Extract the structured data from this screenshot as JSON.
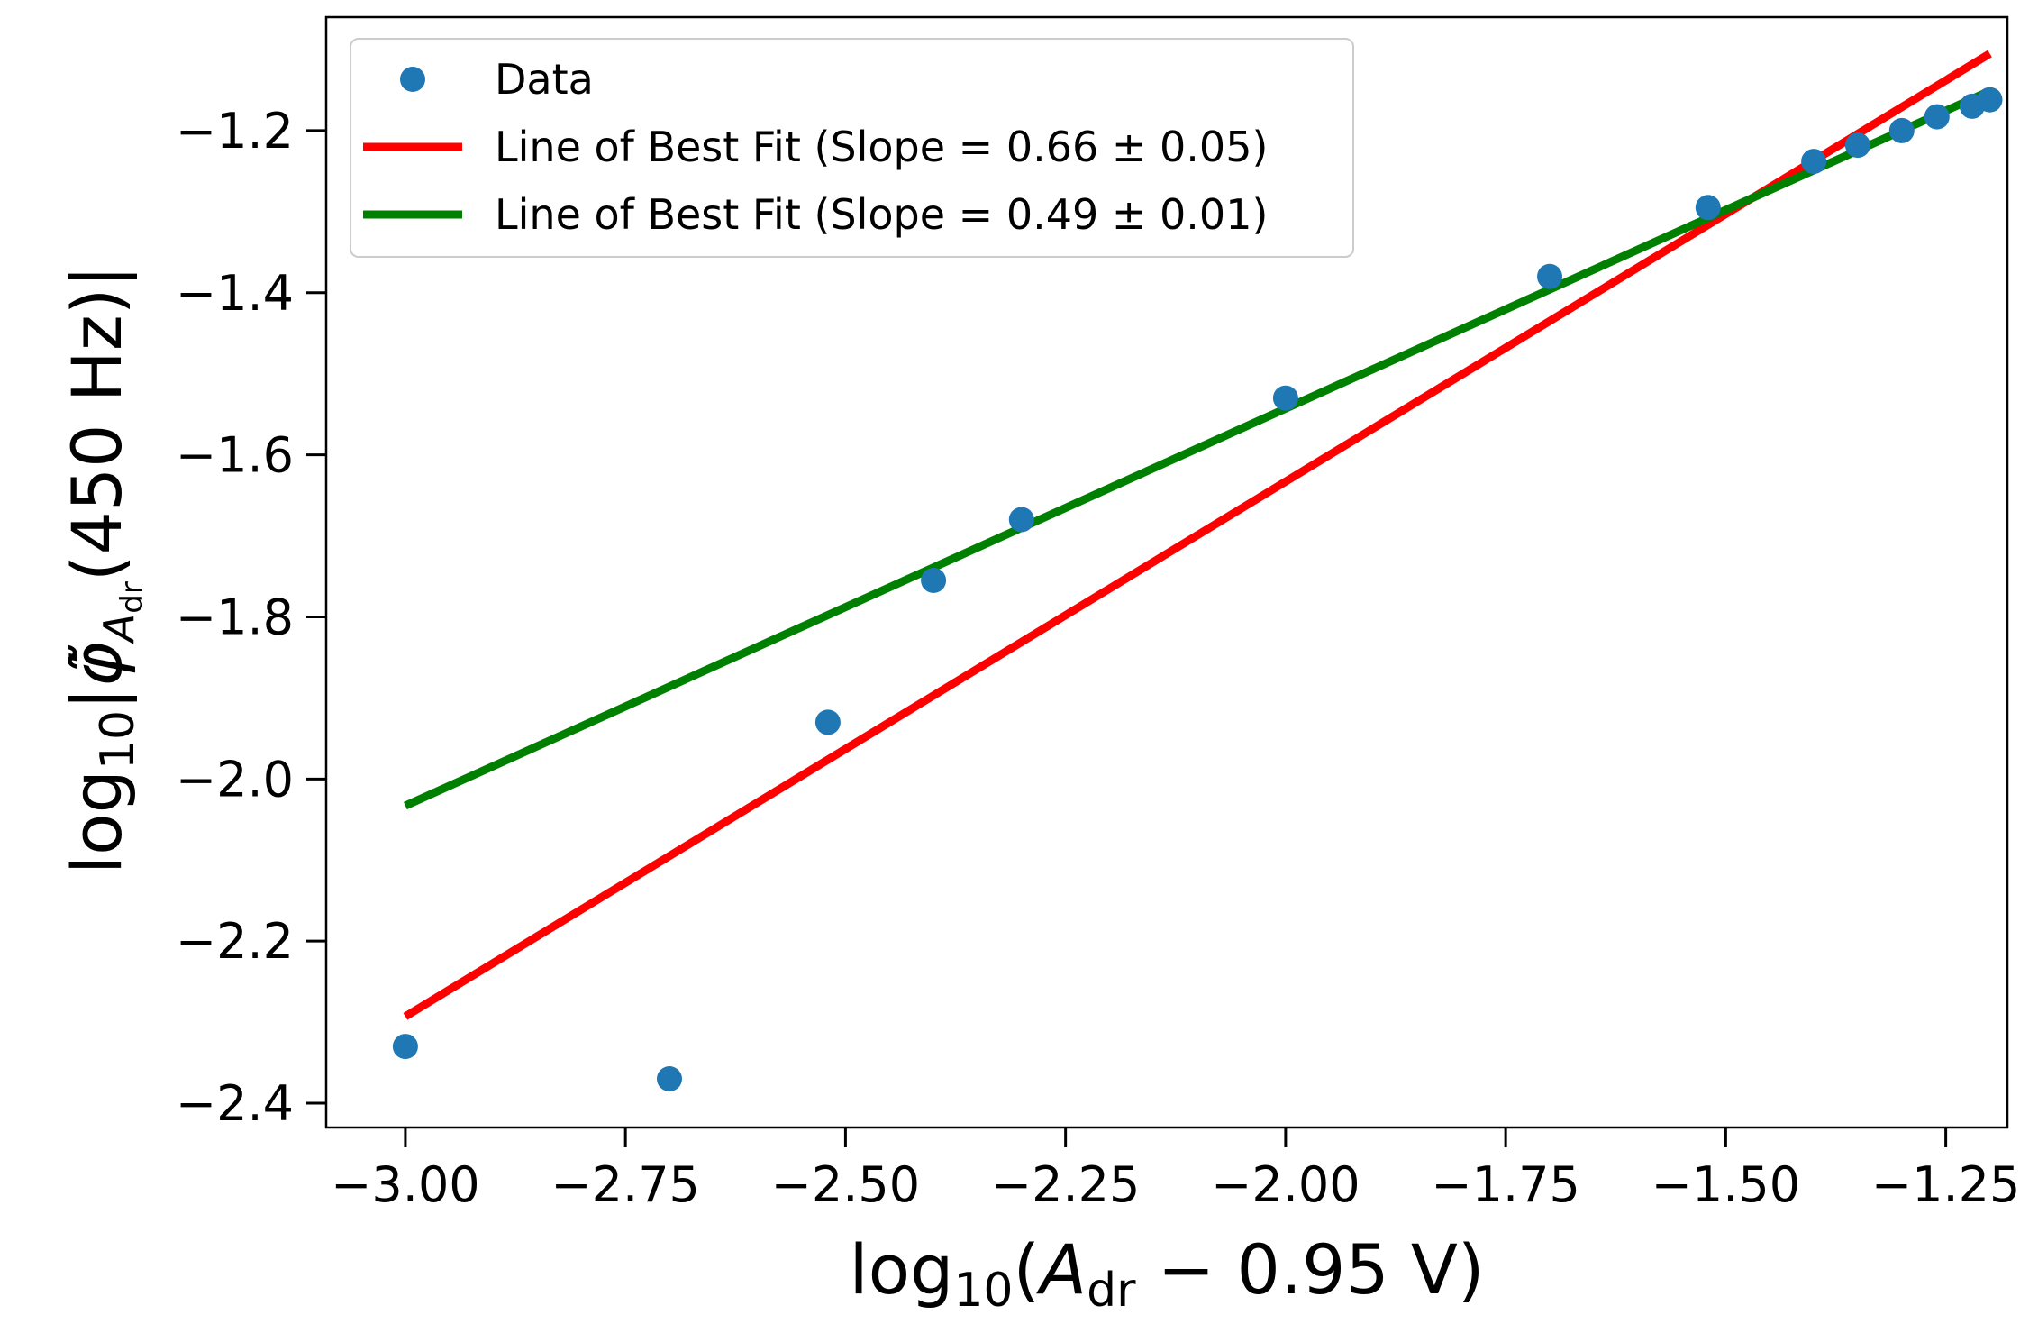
{
  "chart_data": {
    "type": "scatter",
    "xlabel": "log10(A_dr − 0.95 V)",
    "ylabel": "log10|φ̃̇_A_dr(450 Hz)|",
    "xlim": [
      -3.09,
      -1.18
    ],
    "ylim": [
      -2.43,
      -1.06
    ],
    "x_ticks": [
      -3.0,
      -2.75,
      -2.5,
      -2.25,
      -2.0,
      -1.75,
      -1.5,
      -1.25
    ],
    "x_tick_labels": [
      "−3.00",
      "−2.75",
      "−2.50",
      "−2.25",
      "−2.00",
      "−1.75",
      "−1.50",
      "−1.25"
    ],
    "y_ticks": [
      -2.4,
      -2.2,
      -2.0,
      -1.8,
      -1.6,
      -1.4,
      -1.2
    ],
    "y_tick_labels": [
      "−2.4",
      "−2.2",
      "−2.0",
      "−1.8",
      "−1.6",
      "−1.4",
      "−1.2"
    ],
    "grid": false,
    "legend_position": "top-left",
    "series": [
      {
        "name": "Data",
        "kind": "scatter",
        "color": "#1f77b4",
        "x": [
          -3.0,
          -2.7,
          -2.52,
          -2.4,
          -2.3,
          -2.0,
          -1.7,
          -1.52,
          -1.4,
          -1.35,
          -1.3,
          -1.26,
          -1.22,
          -1.2
        ],
        "y": [
          -2.33,
          -2.37,
          -1.93,
          -1.755,
          -1.68,
          -1.53,
          -1.38,
          -1.295,
          -1.238,
          -1.218,
          -1.2,
          -1.183,
          -1.17,
          -1.162
        ]
      },
      {
        "name": "Line of Best Fit (Slope = 0.66 ± 0.05)",
        "kind": "line",
        "color": "#ff0000",
        "x": [
          -3.0,
          -1.2
        ],
        "y": [
          -2.293,
          -1.105
        ]
      },
      {
        "name": "Line of Best Fit (Slope = 0.49 ± 0.01)",
        "kind": "line",
        "color": "#008000",
        "x": [
          -3.0,
          -1.2
        ],
        "y": [
          -2.033,
          -1.151
        ]
      }
    ]
  }
}
